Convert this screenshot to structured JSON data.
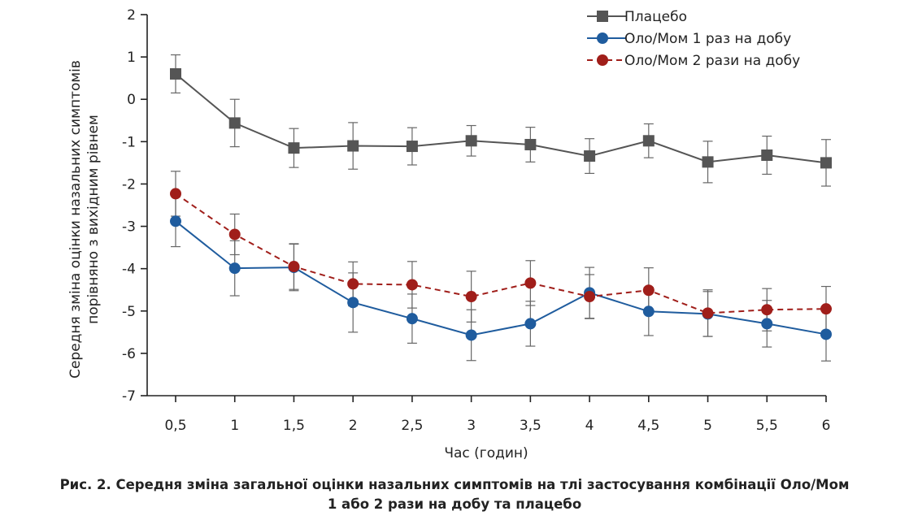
{
  "chart_data": {
    "type": "line",
    "xlabel": "Час (годин)",
    "ylabel_lines": [
      "Середня зміна оцінки назальних симптомів",
      "порівняно з вихідним рівнем"
    ],
    "x": [
      0.5,
      1,
      1.5,
      2,
      2.5,
      3,
      3.5,
      4,
      4.5,
      5,
      5.5,
      6
    ],
    "x_tick_labels": [
      "0,5",
      "1",
      "1,5",
      "2",
      "2,5",
      "3",
      "3,5",
      "4",
      "4,5",
      "5",
      "5,5",
      "6"
    ],
    "ylim": [
      -7,
      2
    ],
    "y_ticks": [
      2,
      1,
      0,
      -1,
      -2,
      -3,
      -4,
      -5,
      -6,
      -7
    ],
    "legend_position": "top-right",
    "series": [
      {
        "name": "Плацебо",
        "color": "#555555",
        "marker": "square",
        "dash": false,
        "values": [
          0.6,
          -0.56,
          -1.15,
          -1.1,
          -1.11,
          -0.98,
          -1.07,
          -1.34,
          -0.98,
          -1.48,
          -1.32,
          -1.5
        ],
        "errors": [
          0.45,
          0.56,
          0.46,
          0.55,
          0.44,
          0.36,
          0.41,
          0.41,
          0.4,
          0.49,
          0.45,
          0.55
        ]
      },
      {
        "name": "Оло/Мом 1 раз на добу",
        "color": "#1f5c9e",
        "marker": "circle",
        "dash": false,
        "values": [
          -2.88,
          -3.99,
          -3.97,
          -4.8,
          -5.18,
          -5.57,
          -5.3,
          -4.57,
          -5.01,
          -5.07,
          -5.3,
          -5.55
        ],
        "errors": [
          0.6,
          0.65,
          0.55,
          0.7,
          0.58,
          0.6,
          0.53,
          0.6,
          0.57,
          0.53,
          0.55,
          0.63
        ]
      },
      {
        "name": "Оло/Мом 2 рази на добу",
        "color": "#a01e1a",
        "marker": "circle",
        "dash": true,
        "values": [
          -2.23,
          -3.19,
          -3.95,
          -4.36,
          -4.38,
          -4.66,
          -4.34,
          -4.66,
          -4.51,
          -5.05,
          -4.97,
          -4.95
        ],
        "errors": [
          0.53,
          0.48,
          0.54,
          0.52,
          0.55,
          0.6,
          0.53,
          0.52,
          0.53,
          0.55,
          0.5,
          0.53
        ]
      }
    ]
  },
  "caption": {
    "line1": "Рис. 2. Середня зміна загальної оцінки назальних симптомів на тлі застосування комбінації Оло/Мом",
    "line2": "1 або 2 рази на добу та плацебо"
  }
}
